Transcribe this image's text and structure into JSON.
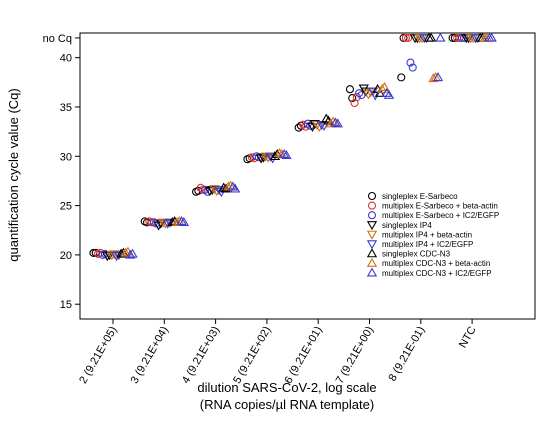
{
  "chart_data": {
    "type": "scatter",
    "ylabel": "quantification cycle value (Cq)",
    "xlabel_lines": [
      "dilution SARS-CoV-2, log scale",
      "(RNA copies/µl RNA template)"
    ],
    "categories": [
      "2 (9.21E+05)",
      "3 (9.21E+04)",
      "4 (9.21E+03)",
      "5 (9.21E+02)",
      "6 (9.21E+01)",
      "7 (9.21E+00)",
      "8 (9.21E-01)",
      "NTC"
    ],
    "y_ticks": [
      15,
      20,
      25,
      30,
      35,
      40
    ],
    "y_special_label": "no Cq",
    "ylim": [
      13.5,
      42.5
    ],
    "legend_position": "right",
    "series": [
      {
        "name": "singleplex E-Sarbeco",
        "marker": "circle",
        "color": "#000000",
        "values": [
          [
            20.2,
            20.2
          ],
          [
            23.4,
            23.3
          ],
          [
            26.4,
            26.5
          ],
          [
            29.7,
            29.8
          ],
          [
            32.9,
            33.1
          ],
          [
            36.8,
            35.9
          ],
          [
            38.0,
            42.0
          ],
          [
            42.0,
            42.0
          ]
        ]
      },
      {
        "name": "multiplex E-Sarbeco + beta-actin",
        "marker": "circle",
        "color": "#e8312a",
        "values": [
          [
            20.1,
            20.2
          ],
          [
            23.4,
            23.3
          ],
          [
            26.8,
            26.6
          ],
          [
            29.9,
            29.8
          ],
          [
            33.2,
            33.0
          ],
          [
            35.4,
            36.0
          ],
          [
            42.0,
            42.0
          ],
          [
            42.0,
            42.0
          ]
        ]
      },
      {
        "name": "multiplex E-Sarbeco + IC2/EGFP",
        "marker": "circle",
        "color": "#3a3ad6",
        "values": [
          [
            20.0,
            20.1
          ],
          [
            23.3,
            23.2
          ],
          [
            26.6,
            26.4
          ],
          [
            30.0,
            29.9
          ],
          [
            33.3,
            33.1
          ],
          [
            36.4,
            36.2
          ],
          [
            39.5,
            39.0
          ],
          [
            42.0,
            42.0
          ]
        ]
      },
      {
        "name": "singleplex IP4",
        "marker": "triangle-down",
        "color": "#000000",
        "values": [
          [
            19.9,
            20.0
          ],
          [
            23.0,
            23.2
          ],
          [
            26.5,
            26.6
          ],
          [
            29.8,
            29.9
          ],
          [
            33.0,
            33.3
          ],
          [
            36.9,
            36.6
          ],
          [
            42.0,
            42.0
          ],
          [
            42.0,
            42.0
          ]
        ]
      },
      {
        "name": "multiplex IP4 + beta-actin",
        "marker": "triangle-down",
        "color": "#d4700f",
        "values": [
          [
            20.0,
            20.1
          ],
          [
            23.3,
            23.2
          ],
          [
            26.7,
            26.5
          ],
          [
            30.0,
            29.9
          ],
          [
            33.2,
            33.0
          ],
          [
            36.3,
            36.5
          ],
          [
            42.0,
            42.0
          ],
          [
            42.0,
            42.0
          ]
        ]
      },
      {
        "name": "multiplex IP4 + IC2/EGFP",
        "marker": "triangle-down",
        "color": "#3a3ad6",
        "values": [
          [
            19.9,
            20.0
          ],
          [
            23.2,
            23.3
          ],
          [
            26.6,
            26.4
          ],
          [
            30.0,
            29.8
          ],
          [
            33.2,
            33.1
          ],
          [
            36.6,
            36.2
          ],
          [
            42.0,
            42.0
          ],
          [
            42.0,
            42.0
          ]
        ]
      },
      {
        "name": "singleplex CDC-N3",
        "marker": "triangle-up",
        "color": "#000000",
        "values": [
          [
            20.1,
            20.2
          ],
          [
            23.3,
            23.4
          ],
          [
            26.8,
            26.7
          ],
          [
            30.0,
            30.2
          ],
          [
            33.8,
            33.6
          ],
          [
            36.8,
            36.4
          ],
          [
            42.0,
            42.0
          ],
          [
            42.0,
            42.0
          ]
        ]
      },
      {
        "name": "multiplex CDC-N3 + beta-actin",
        "marker": "triangle-up",
        "color": "#d4700f",
        "values": [
          [
            20.2,
            20.3
          ],
          [
            23.3,
            23.4
          ],
          [
            26.9,
            27.0
          ],
          [
            30.3,
            30.2
          ],
          [
            33.3,
            33.5
          ],
          [
            36.8,
            37.0
          ],
          [
            37.9,
            38.0
          ],
          [
            42.0,
            42.0
          ]
        ]
      },
      {
        "name": "multiplex CDC-N3 + IC2/EGFP",
        "marker": "triangle-up",
        "color": "#3a3ad6",
        "values": [
          [
            20.0,
            20.1
          ],
          [
            23.4,
            23.3
          ],
          [
            26.9,
            26.7
          ],
          [
            30.2,
            30.1
          ],
          [
            33.4,
            33.3
          ],
          [
            36.4,
            36.2
          ],
          [
            38.0,
            42.0
          ],
          [
            42.0,
            42.0
          ]
        ]
      }
    ]
  }
}
